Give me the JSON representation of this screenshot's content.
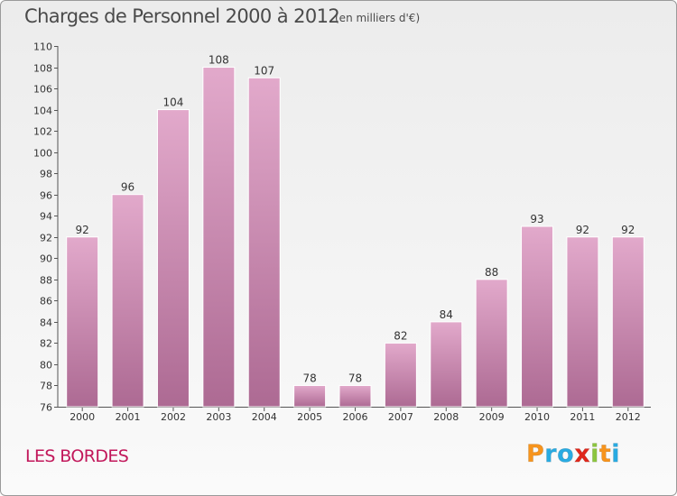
{
  "header": {
    "title": "Charges de Personnel 2000 à 2012",
    "subtitle": "(en milliers d'€)"
  },
  "footer": {
    "commune": "LES BORDES",
    "logo_letters": [
      {
        "ch": "P",
        "color": "#f7941d"
      },
      {
        "ch": "r",
        "color": "#29abe2"
      },
      {
        "ch": "o",
        "color": "#29abe2"
      },
      {
        "ch": "x",
        "color": "#e0271b"
      },
      {
        "ch": "i",
        "color": "#8cc63f"
      },
      {
        "ch": "t",
        "color": "#f7941d"
      },
      {
        "ch": "i",
        "color": "#29abe2"
      }
    ]
  },
  "chart_data": {
    "type": "bar",
    "categories": [
      "2000",
      "2001",
      "2002",
      "2003",
      "2004",
      "2005",
      "2006",
      "2007",
      "2008",
      "2009",
      "2010",
      "2011",
      "2012"
    ],
    "values": [
      92,
      96,
      104,
      108,
      107,
      78,
      78,
      82,
      84,
      88,
      93,
      92,
      92
    ],
    "data_labels": [
      "92",
      "96",
      "104",
      "108",
      "107",
      "78",
      "78",
      "82",
      "84",
      "88",
      "93",
      "92",
      "92"
    ],
    "ylim": [
      76,
      110
    ],
    "yticks": [
      76,
      78,
      80,
      82,
      84,
      86,
      88,
      90,
      92,
      94,
      96,
      98,
      100,
      102,
      104,
      106,
      108,
      110
    ],
    "grid": false,
    "bar_color": "#d98fb8",
    "xlabel": "",
    "ylabel": ""
  }
}
